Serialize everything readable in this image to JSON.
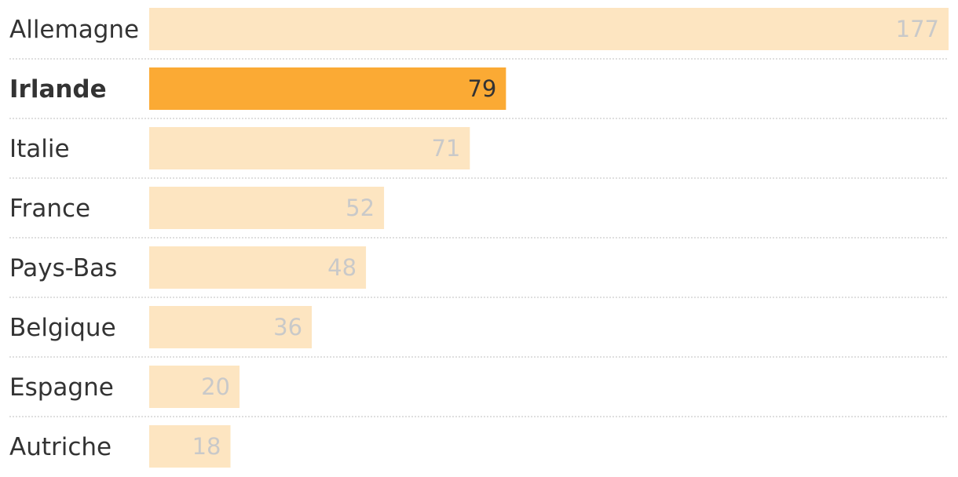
{
  "chart_data": {
    "type": "bar",
    "orientation": "horizontal",
    "categories": [
      "Allemagne",
      "Irlande",
      "Italie",
      "France",
      "Pays-Bas",
      "Belgique",
      "Espagne",
      "Autriche"
    ],
    "values": [
      177,
      79,
      71,
      52,
      48,
      36,
      20,
      18
    ],
    "highlight": "Irlande",
    "xlim": [
      0,
      177
    ],
    "colors": {
      "bar": "#fde5c1",
      "bar_highlight": "#fbaa34",
      "label_value": "#c9c9c9",
      "label_value_highlight": "#333333",
      "category_label": "#333333",
      "separator": "#bfbfbf"
    },
    "grid": false,
    "title": "",
    "xlabel": "",
    "ylabel": ""
  }
}
